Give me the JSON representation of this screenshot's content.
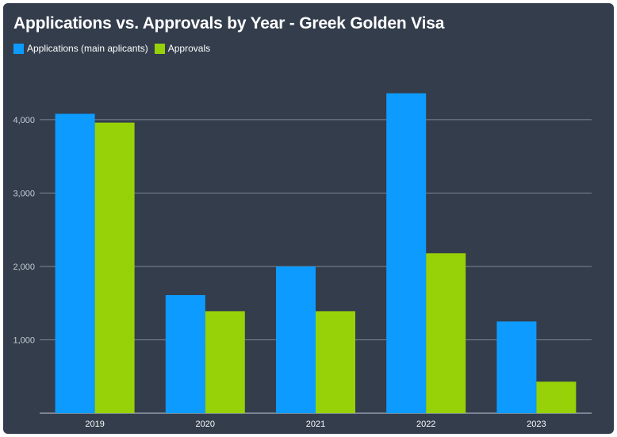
{
  "chart_data": {
    "type": "bar",
    "title": "Applications vs. Approvals by Year - Greek Golden Visa",
    "categories": [
      "2019",
      "2020",
      "2021",
      "2022",
      "2023"
    ],
    "series": [
      {
        "name": "Applications (main aplicants)",
        "color": "#0d9bff",
        "values": [
          4080,
          1610,
          2000,
          4360,
          1250
        ]
      },
      {
        "name": "Approvals",
        "color": "#97d108",
        "values": [
          3960,
          1390,
          1390,
          2180,
          430
        ]
      }
    ],
    "yticks": [
      1000,
      2000,
      3000,
      4000
    ],
    "ytick_labels": [
      "1,000",
      "2,000",
      "3,000",
      "4,000"
    ],
    "ylim": [
      0,
      4550
    ],
    "grid": true,
    "legend_position": "top-left",
    "xlabel": "",
    "ylabel": ""
  },
  "colors": {
    "background": "#333d4c",
    "gridline": "#7d8694",
    "axis": "#c6ccd6"
  }
}
